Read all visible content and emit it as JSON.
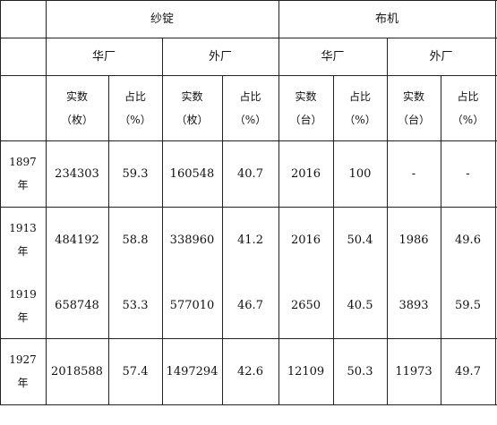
{
  "header": {
    "spindles": "纱锭",
    "looms": "布机",
    "chinese": "华厂",
    "foreign": "外厂",
    "count_label": "实数",
    "ratio_label": "占比",
    "unit_spindle": "（枚）",
    "unit_loom": "（台）",
    "unit_pct": "（%）"
  },
  "rows": [
    {
      "year": "1897",
      "nian": "年",
      "sp_cn": "234303",
      "sp_cn_pct": "59.3",
      "sp_fr": "160548",
      "sp_fr_pct": "40.7",
      "lm_cn": "2016",
      "lm_cn_pct": "100",
      "lm_fr": "-",
      "lm_fr_pct": "-"
    },
    {
      "year": "1913",
      "nian": "年",
      "sp_cn": "484192",
      "sp_cn_pct": "58.8",
      "sp_fr": "338960",
      "sp_fr_pct": "41.2",
      "lm_cn": "2016",
      "lm_cn_pct": "50.4",
      "lm_fr": "1986",
      "lm_fr_pct": "49.6"
    },
    {
      "year": "1919",
      "nian": "年",
      "sp_cn": "658748",
      "sp_cn_pct": "53.3",
      "sp_fr": "577010",
      "sp_fr_pct": "46.7",
      "lm_cn": "2650",
      "lm_cn_pct": "40.5",
      "lm_fr": "3893",
      "lm_fr_pct": "59.5"
    },
    {
      "year": "1927",
      "nian": "年",
      "sp_cn": "2018588",
      "sp_cn_pct": "57.4",
      "sp_fr": "1497294",
      "sp_fr_pct": "42.6",
      "lm_cn": "12109",
      "lm_cn_pct": "50.3",
      "lm_fr": "11973",
      "lm_fr_pct": "49.7"
    }
  ]
}
